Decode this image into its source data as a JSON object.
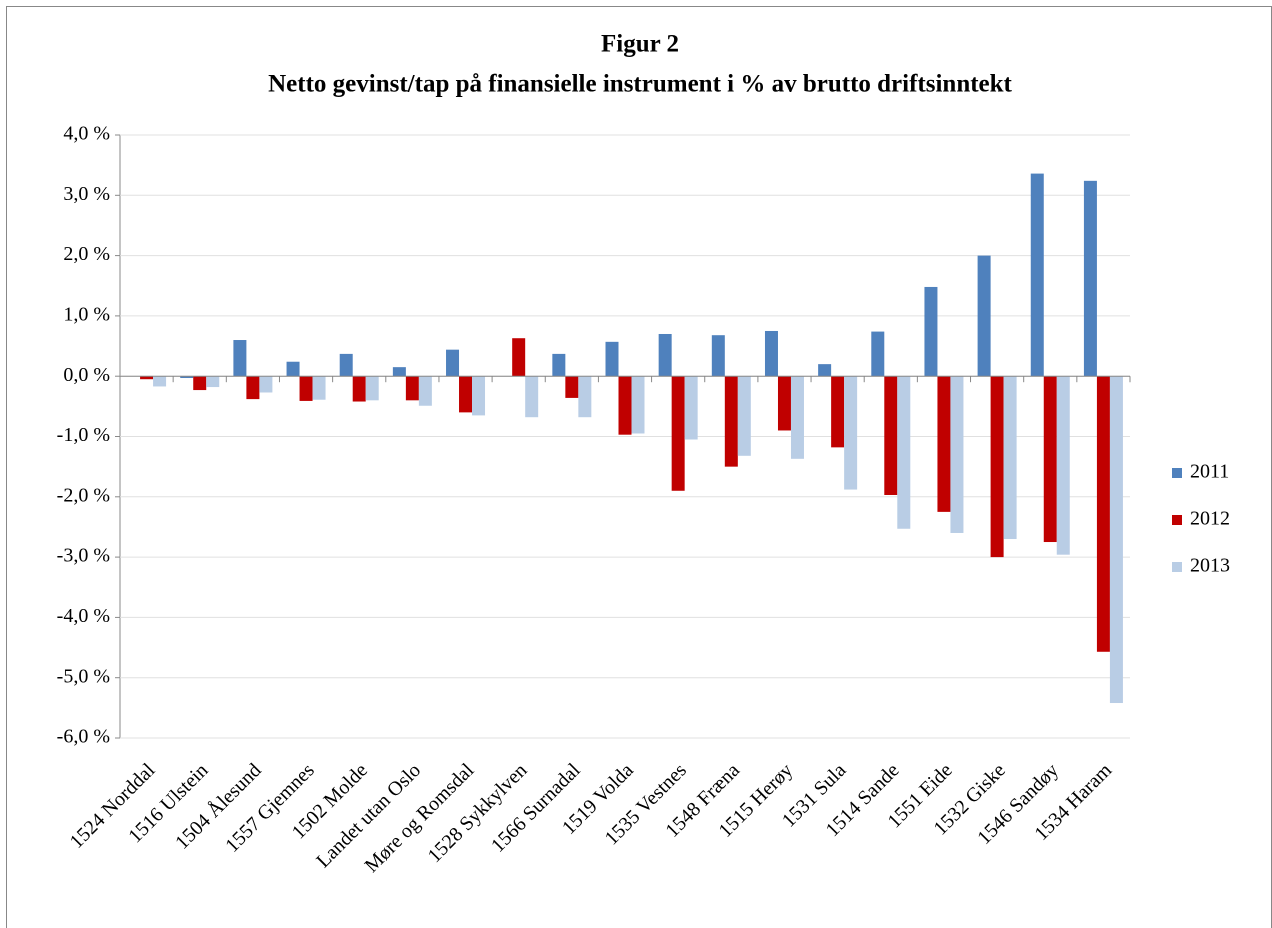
{
  "chart_data": {
    "type": "bar",
    "title": "Figur 2",
    "subtitle": "Netto gevinst/tap på finansielle instrument i % av brutto driftsinntekt",
    "categories": [
      "1524 Norddal",
      "1516 Ulstein",
      "1504 Ålesund",
      "1557 Gjemnes",
      "1502 Molde",
      "Landet utan Oslo",
      "Møre og Romsdal",
      "1528 Sykkylven",
      "1566 Surnadal",
      "1519 Volda",
      "1535 Vestnes",
      "1548 Fræna",
      "1515 Herøy",
      "1531 Sula",
      "1514 Sande",
      "1551 Eide",
      "1532 Giske",
      "1546 Sandøy",
      "1534 Haram"
    ],
    "series": [
      {
        "name": "2011",
        "color": "#4f81bd",
        "values": [
          0,
          -0.03,
          0.6,
          0.24,
          0.37,
          0.15,
          0.44,
          0,
          0.37,
          0.57,
          0.7,
          0.68,
          0.75,
          0.2,
          0.74,
          1.48,
          2.0,
          3.36,
          3.24
        ]
      },
      {
        "name": "2012",
        "color": "#c00000",
        "values": [
          -0.05,
          -0.23,
          -0.38,
          -0.41,
          -0.42,
          -0.4,
          -0.6,
          0.63,
          -0.36,
          -0.97,
          -1.9,
          -1.5,
          -0.9,
          -1.18,
          -1.97,
          -2.25,
          -3.0,
          -2.75,
          -4.57
        ]
      },
      {
        "name": "2013",
        "color": "#b9cde5",
        "values": [
          -0.17,
          -0.18,
          -0.27,
          -0.39,
          -0.4,
          -0.49,
          -0.65,
          -0.68,
          -0.68,
          -0.95,
          -1.05,
          -1.32,
          -1.37,
          -1.88,
          -2.53,
          -2.6,
          -2.7,
          -2.96,
          -5.42
        ]
      }
    ],
    "ylim": [
      -6,
      4
    ],
    "yticks": [
      {
        "value": -6,
        "label": "-6,0 %"
      },
      {
        "value": -5,
        "label": "-5,0 %"
      },
      {
        "value": -4,
        "label": "-4,0 %"
      },
      {
        "value": -3,
        "label": "-3,0 %"
      },
      {
        "value": -2,
        "label": "-2,0 %"
      },
      {
        "value": -1,
        "label": "-1,0 %"
      },
      {
        "value": 0,
        "label": "0,0 %"
      },
      {
        "value": 1,
        "label": "1,0 %"
      },
      {
        "value": 2,
        "label": "2,0 %"
      },
      {
        "value": 3,
        "label": "3,0 %"
      },
      {
        "value": 4,
        "label": "4,0 %"
      }
    ],
    "grid": true,
    "legend": "right"
  }
}
